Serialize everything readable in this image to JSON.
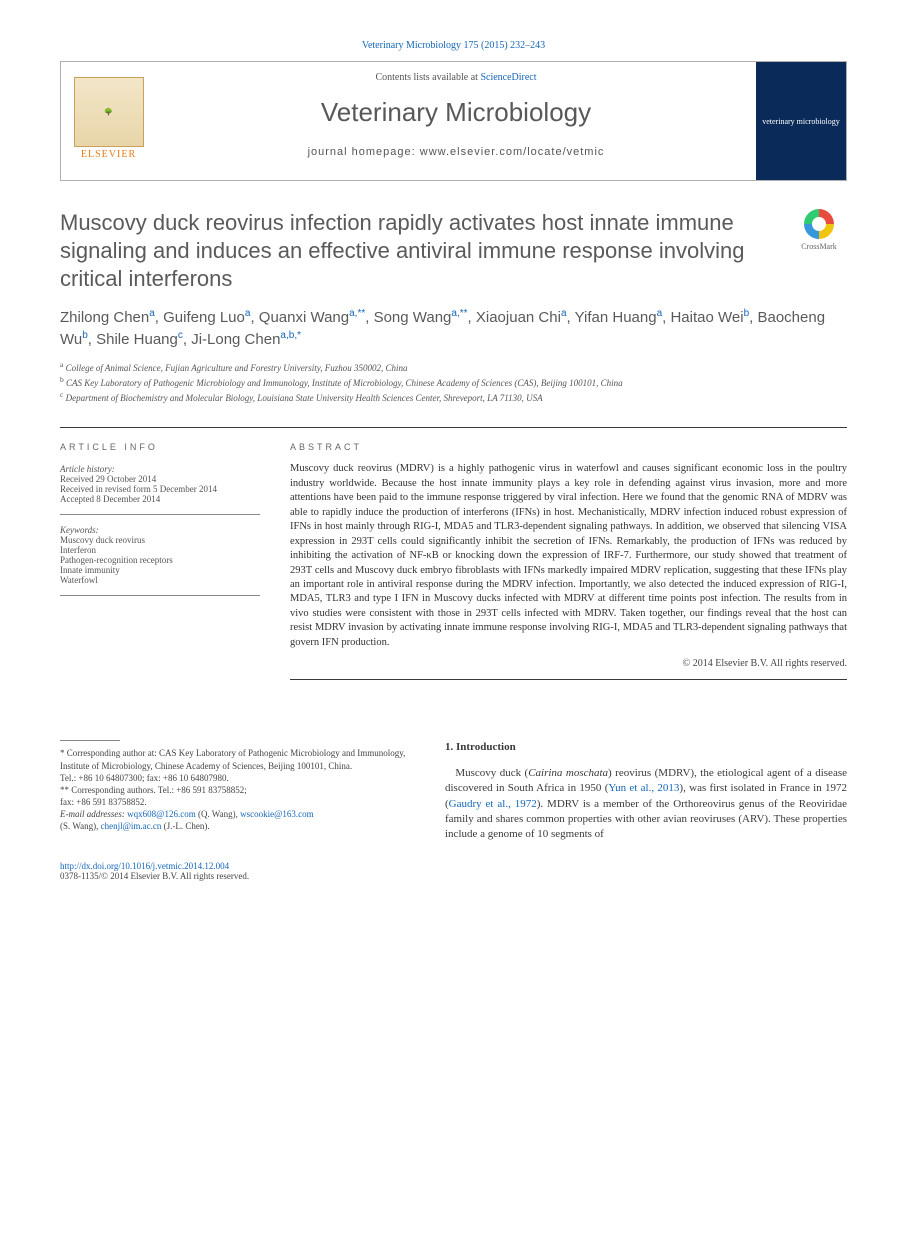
{
  "journal": {
    "citation": "Veterinary Microbiology 175 (2015) 232–243",
    "contents_prefix": "Contents lists available at ",
    "contents_link": "ScienceDirect",
    "name": "Veterinary Microbiology",
    "homepage_label": "journal homepage: ",
    "homepage_url": "www.elsevier.com/locate/vetmic",
    "publisher_logo_text": "ELSEVIER",
    "cover_text": "veterinary microbiology"
  },
  "colors": {
    "link": "#1566b8",
    "text": "#3a3a3a",
    "muted": "#5a5a5a",
    "publisher": "#e67a17",
    "cover_bg": "#0a2a5a",
    "border": "#b0b0b0"
  },
  "fonts": {
    "title_size_pt": 22,
    "authors_size_pt": 15,
    "abstract_size_pt": 10.5,
    "small_size_pt": 9
  },
  "crossmark": {
    "label": "CrossMark"
  },
  "article": {
    "title": "Muscovy duck reovirus infection rapidly activates host innate immune signaling and induces an effective antiviral immune response involving critical interferons",
    "authors_html": "Zhilong Chen<sup>a</sup>, Guifeng Luo<sup>a</sup>, Quanxi Wang<sup>a,**</sup>, Song Wang<sup>a,**</sup>, Xiaojuan Chi<sup>a</sup>, Yifan Huang<sup>a</sup>, Haitao Wei<sup>b</sup>, Baocheng Wu<sup>b</sup>, Shile Huang<sup>c</sup>, Ji-Long Chen<sup>a,b,*</sup>",
    "affiliations": {
      "a": "College of Animal Science, Fujian Agriculture and Forestry University, Fuzhou 350002, China",
      "b": "CAS Key Laboratory of Pathogenic Microbiology and Immunology, Institute of Microbiology, Chinese Academy of Sciences (CAS), Beijing 100101, China",
      "c": "Department of Biochemistry and Molecular Biology, Louisiana State University Health Sciences Center, Shreveport, LA 71130, USA"
    }
  },
  "article_info": {
    "heading": "ARTICLE INFO",
    "history_label": "Article history:",
    "received": "Received 29 October 2014",
    "revised": "Received in revised form 5 December 2014",
    "accepted": "Accepted 8 December 2014",
    "keywords_label": "Keywords:",
    "keywords": [
      "Muscovy duck reovirus",
      "Interferon",
      "Pathogen-recognition receptors",
      "Innate immunity",
      "Waterfowl"
    ]
  },
  "abstract": {
    "heading": "ABSTRACT",
    "text": "Muscovy duck reovirus (MDRV) is a highly pathogenic virus in waterfowl and causes significant economic loss in the poultry industry worldwide. Because the host innate immunity plays a key role in defending against virus invasion, more and more attentions have been paid to the immune response triggered by viral infection. Here we found that the genomic RNA of MDRV was able to rapidly induce the production of interferons (IFNs) in host. Mechanistically, MDRV infection induced robust expression of IFNs in host mainly through RIG-I, MDA5 and TLR3-dependent signaling pathways. In addition, we observed that silencing VISA expression in 293T cells could significantly inhibit the secretion of IFNs. Remarkably, the production of IFNs was reduced by inhibiting the activation of NF-κB or knocking down the expression of IRF-7. Furthermore, our study showed that treatment of 293T cells and Muscovy duck embryo fibroblasts with IFNs markedly impaired MDRV replication, suggesting that these IFNs play an important role in antiviral response during the MDRV infection. Importantly, we also detected the induced expression of RIG-I, MDA5, TLR3 and type I IFN in Muscovy ducks infected with MDRV at different time points post infection. The results from in vivo studies were consistent with those in 293T cells infected with MDRV. Taken together, our findings reveal that the host can resist MDRV invasion by activating innate immune response involving RIG-I, MDA5 and TLR3-dependent signaling pathways that govern IFN production.",
    "copyright": "© 2014 Elsevier B.V. All rights reserved."
  },
  "correspondence": {
    "star": "* Corresponding author at: CAS Key Laboratory of Pathogenic Microbiology and Immunology, Institute of Microbiology, Chinese Academy of Sciences, Beijing 100101, China.",
    "tel1": "Tel.: +86 10 64807300; fax: +86 10 64807980.",
    "star2": "** Corresponding authors. Tel.: +86 591 83758852;",
    "fax2": "fax: +86 591 83758852.",
    "emails_label": "E-mail addresses: ",
    "email1": "wqx608@126.com",
    "email1_who": " (Q. Wang), ",
    "email2": "wscookie@163.com",
    "email2_who": " (S. Wang), ",
    "email3": "chenjl@im.ac.cn",
    "email3_who": " (J.-L. Chen)."
  },
  "intro": {
    "heading": "1. Introduction",
    "para1_pre": "Muscovy duck (",
    "para1_italic": "Cairina moschata",
    "para1_mid": ") reovirus (MDRV), the etiological agent of a disease discovered in South Africa in 1950 (",
    "para1_ref1": "Yun et al., 2013",
    "para1_mid2": "), was first isolated in France in 1972 (",
    "para1_ref2": "Gaudry et al., 1972",
    "para1_post": "). MDRV is a member of the Orthoreovirus genus of the Reoviridae family and shares common properties with other avian reoviruses (ARV). These properties include a genome of 10 segments of"
  },
  "footer": {
    "doi": "http://dx.doi.org/10.1016/j.vetmic.2014.12.004",
    "issn_line": "0378-1135/© 2014 Elsevier B.V. All rights reserved."
  }
}
